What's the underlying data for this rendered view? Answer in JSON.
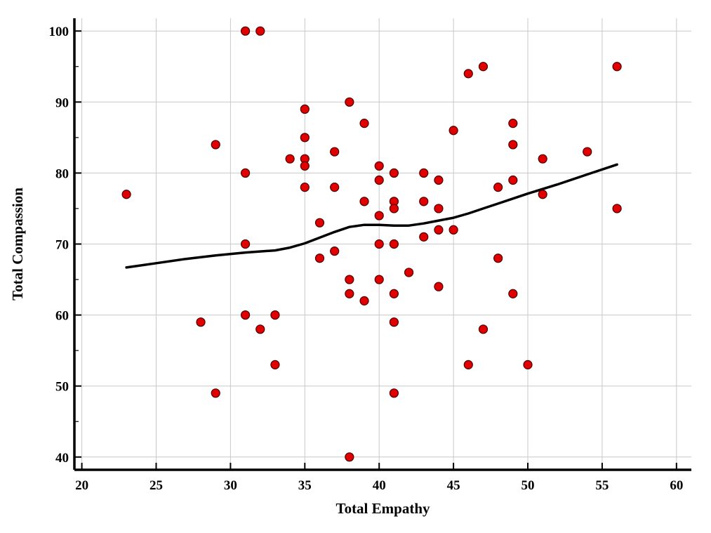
{
  "chart_data": {
    "type": "scatter",
    "xlabel": "Total Empathy",
    "ylabel": "Total Compassion",
    "xlim": [
      19.5,
      61
    ],
    "ylim": [
      38.2,
      101.8
    ],
    "xticks": [
      20,
      25,
      30,
      35,
      40,
      45,
      50,
      55,
      60
    ],
    "yticks": [
      40,
      50,
      60,
      70,
      80,
      90,
      100
    ],
    "grid": true,
    "colors": {
      "point_fill": "#e00000",
      "point_stroke": "#4a0000",
      "line": "#000000"
    },
    "points": [
      {
        "x": 23,
        "y": 77
      },
      {
        "x": 28,
        "y": 59
      },
      {
        "x": 29,
        "y": 84
      },
      {
        "x": 29,
        "y": 49
      },
      {
        "x": 31,
        "y": 100
      },
      {
        "x": 32,
        "y": 100
      },
      {
        "x": 31,
        "y": 80
      },
      {
        "x": 31,
        "y": 70
      },
      {
        "x": 31,
        "y": 60
      },
      {
        "x": 32,
        "y": 58
      },
      {
        "x": 33,
        "y": 60
      },
      {
        "x": 33,
        "y": 53
      },
      {
        "x": 34,
        "y": 82
      },
      {
        "x": 35,
        "y": 89
      },
      {
        "x": 35,
        "y": 85
      },
      {
        "x": 35,
        "y": 82
      },
      {
        "x": 35,
        "y": 81
      },
      {
        "x": 35,
        "y": 78
      },
      {
        "x": 36,
        "y": 73
      },
      {
        "x": 36,
        "y": 68
      },
      {
        "x": 37,
        "y": 83
      },
      {
        "x": 37,
        "y": 78
      },
      {
        "x": 37,
        "y": 69
      },
      {
        "x": 38,
        "y": 90
      },
      {
        "x": 38,
        "y": 65
      },
      {
        "x": 38,
        "y": 63
      },
      {
        "x": 38,
        "y": 40
      },
      {
        "x": 39,
        "y": 87
      },
      {
        "x": 39,
        "y": 76
      },
      {
        "x": 39,
        "y": 62
      },
      {
        "x": 40,
        "y": 81
      },
      {
        "x": 40,
        "y": 79
      },
      {
        "x": 40,
        "y": 74
      },
      {
        "x": 40,
        "y": 70
      },
      {
        "x": 40,
        "y": 65
      },
      {
        "x": 41,
        "y": 80
      },
      {
        "x": 41,
        "y": 76
      },
      {
        "x": 41,
        "y": 75
      },
      {
        "x": 41,
        "y": 70
      },
      {
        "x": 41,
        "y": 63
      },
      {
        "x": 41,
        "y": 59
      },
      {
        "x": 41,
        "y": 49
      },
      {
        "x": 42,
        "y": 66
      },
      {
        "x": 43,
        "y": 80
      },
      {
        "x": 43,
        "y": 76
      },
      {
        "x": 43,
        "y": 71
      },
      {
        "x": 44,
        "y": 79
      },
      {
        "x": 44,
        "y": 75
      },
      {
        "x": 44,
        "y": 72
      },
      {
        "x": 44,
        "y": 64
      },
      {
        "x": 45,
        "y": 86
      },
      {
        "x": 45,
        "y": 72
      },
      {
        "x": 46,
        "y": 94
      },
      {
        "x": 46,
        "y": 53
      },
      {
        "x": 47,
        "y": 95
      },
      {
        "x": 47,
        "y": 58
      },
      {
        "x": 48,
        "y": 78
      },
      {
        "x": 48,
        "y": 68
      },
      {
        "x": 49,
        "y": 87
      },
      {
        "x": 49,
        "y": 84
      },
      {
        "x": 49,
        "y": 79
      },
      {
        "x": 49,
        "y": 63
      },
      {
        "x": 50,
        "y": 53
      },
      {
        "x": 51,
        "y": 82
      },
      {
        "x": 51,
        "y": 77
      },
      {
        "x": 54,
        "y": 83
      },
      {
        "x": 56,
        "y": 95
      },
      {
        "x": 56,
        "y": 75
      }
    ],
    "smooth_line": [
      {
        "x": 23,
        "y": 66.7
      },
      {
        "x": 25,
        "y": 67.3
      },
      {
        "x": 27,
        "y": 67.9
      },
      {
        "x": 29,
        "y": 68.4
      },
      {
        "x": 31,
        "y": 68.8
      },
      {
        "x": 33,
        "y": 69.1
      },
      {
        "x": 34,
        "y": 69.5
      },
      {
        "x": 35,
        "y": 70.1
      },
      {
        "x": 36,
        "y": 70.9
      },
      {
        "x": 37,
        "y": 71.7
      },
      {
        "x": 38,
        "y": 72.4
      },
      {
        "x": 39,
        "y": 72.7
      },
      {
        "x": 40,
        "y": 72.7
      },
      {
        "x": 41,
        "y": 72.6
      },
      {
        "x": 42,
        "y": 72.6
      },
      {
        "x": 43,
        "y": 72.9
      },
      {
        "x": 44,
        "y": 73.3
      },
      {
        "x": 45,
        "y": 73.7
      },
      {
        "x": 46,
        "y": 74.3
      },
      {
        "x": 47,
        "y": 75.0
      },
      {
        "x": 48,
        "y": 75.7
      },
      {
        "x": 49,
        "y": 76.4
      },
      {
        "x": 50,
        "y": 77.1
      },
      {
        "x": 52,
        "y": 78.4
      },
      {
        "x": 54,
        "y": 79.8
      },
      {
        "x": 56,
        "y": 81.2
      }
    ]
  }
}
